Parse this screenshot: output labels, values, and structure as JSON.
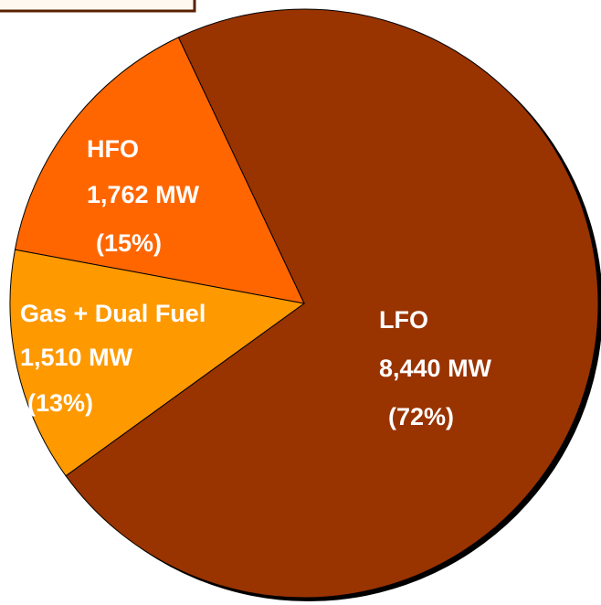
{
  "chart_data": {
    "type": "pie",
    "categories": [
      "LFO",
      "Gas + Dual Fuel",
      "HFO"
    ],
    "values": [
      8440,
      1510,
      1762
    ],
    "value_labels": [
      "8,440 MW",
      "1,510 MW",
      "1,762 MW"
    ],
    "percentages": [
      72,
      13,
      15
    ],
    "percentage_labels": [
      "(72%)",
      "(13%)",
      "(15%)"
    ],
    "colors": [
      "#993300",
      "#ff9900",
      "#ff6600"
    ]
  }
}
